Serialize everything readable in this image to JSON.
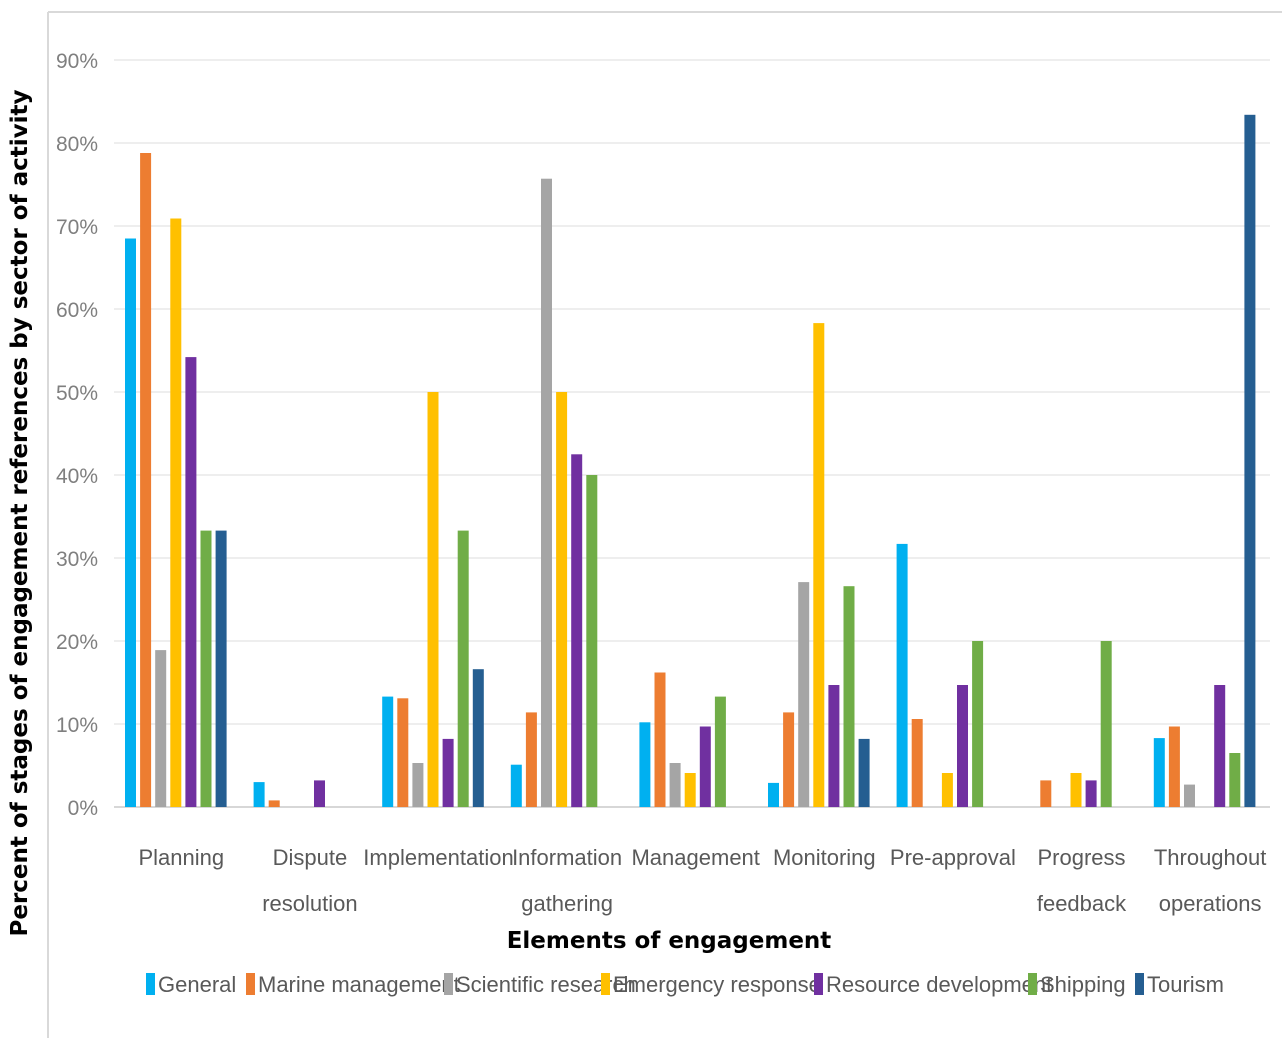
{
  "chart_data": {
    "type": "bar",
    "title": "",
    "xlabel": "Elements of engagement",
    "ylabel": "Percent of stages of engagement references by sector of activity",
    "ylim": [
      0,
      90
    ],
    "ytick_step": 10,
    "ytick_suffix": "%",
    "grid": true,
    "legend_position": "bottom",
    "categories": [
      [
        "Planning"
      ],
      [
        "Dispute",
        "resolution"
      ],
      [
        "Implementation"
      ],
      [
        "Information",
        "gathering"
      ],
      [
        "Management"
      ],
      [
        "Monitoring"
      ],
      [
        "Pre-approval"
      ],
      [
        "Progress",
        "feedback"
      ],
      [
        "Throughout",
        "operations"
      ]
    ],
    "series": [
      {
        "name": "General",
        "color": "#00b0f0",
        "values": [
          68.5,
          3,
          13.3,
          5.1,
          10.2,
          2.9,
          31.7,
          0,
          8.3
        ]
      },
      {
        "name": "Marine management",
        "color": "#ed7d31",
        "values": [
          78.8,
          0.8,
          13.1,
          11.4,
          16.2,
          11.4,
          10.6,
          3.2,
          9.7
        ]
      },
      {
        "name": "Scientific research",
        "color": "#a5a5a5",
        "values": [
          18.9,
          0,
          5.3,
          75.7,
          5.3,
          27.1,
          0,
          0,
          2.7
        ]
      },
      {
        "name": "Emergency response",
        "color": "#ffc000",
        "values": [
          70.9,
          0,
          50,
          50,
          4.1,
          58.3,
          4.1,
          4.1,
          0
        ]
      },
      {
        "name": "Resource development",
        "color": "#7030a0",
        "values": [
          54.2,
          3.2,
          8.2,
          42.5,
          9.7,
          14.7,
          14.7,
          3.2,
          14.7
        ]
      },
      {
        "name": "Shipping",
        "color": "#70ad47",
        "values": [
          33.3,
          0,
          33.3,
          40,
          13.3,
          26.6,
          20,
          20,
          6.5
        ]
      },
      {
        "name": "Tourism",
        "color": "#255e91",
        "values": [
          33.3,
          0,
          16.6,
          0,
          0,
          8.2,
          0,
          0,
          83.4
        ]
      }
    ]
  }
}
